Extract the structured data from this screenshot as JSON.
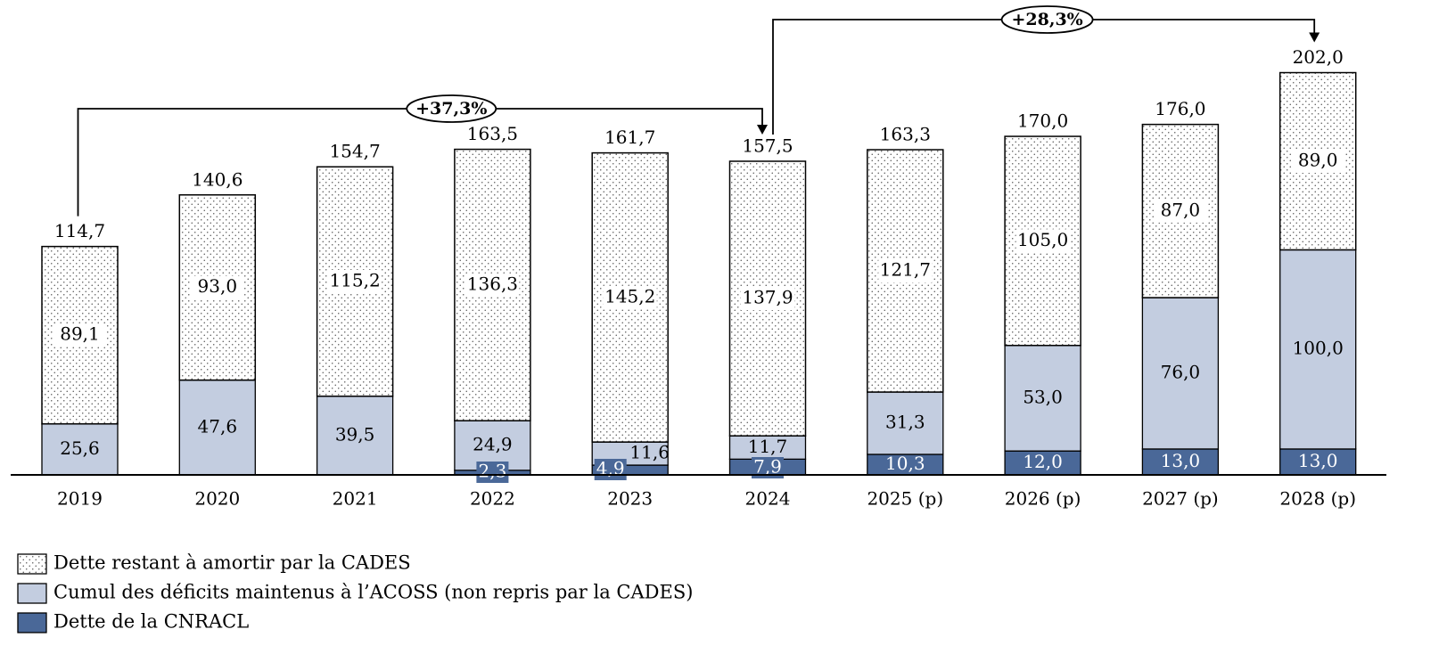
{
  "colors": {
    "cades_fill": "#ffffff",
    "cades_dots": "#555555",
    "acoss": "#c3cde0",
    "cnracl": "#4a6898",
    "stroke": "#000000"
  },
  "chart_data": {
    "type": "bar",
    "stacked": true,
    "categories": [
      "2019",
      "2020",
      "2021",
      "2022",
      "2023",
      "2024",
      "2025 (p)",
      "2026 (p)",
      "2027 (p)",
      "2028 (p)"
    ],
    "series": [
      {
        "name": "Dette de la CNRACL",
        "values": [
          0,
          0,
          0,
          2.3,
          4.9,
          7.9,
          10.3,
          12.0,
          13.0,
          13.0
        ]
      },
      {
        "name": "Cumul des déficits maintenus à l’ACOSS (non repris par la CADES)",
        "values": [
          25.6,
          47.6,
          39.5,
          24.9,
          11.6,
          11.7,
          31.3,
          53.0,
          76.0,
          100.0
        ]
      },
      {
        "name": "Dette restant à amortir par la CADES",
        "values": [
          89.1,
          93.0,
          115.2,
          136.3,
          145.2,
          137.9,
          121.7,
          105.0,
          87.0,
          89.0
        ]
      }
    ],
    "value_labels": {
      "cnracl": [
        "",
        "",
        "",
        "2,3",
        "4,9",
        "7,9",
        "10,3",
        "12,0",
        "13,0",
        "13,0"
      ],
      "acoss": [
        "25,6",
        "47,6",
        "39,5",
        "24,9",
        "11,6",
        "11,7",
        "31,3",
        "53,0",
        "76,0",
        "100,0"
      ],
      "cades": [
        "89,1",
        "93,0",
        "115,2",
        "136,3",
        "145,2",
        "137,9",
        "121,7",
        "105,0",
        "87,0",
        "89,0"
      ]
    },
    "totals": [
      114.7,
      140.6,
      154.7,
      163.5,
      161.7,
      157.5,
      163.3,
      170.0,
      176.0,
      202.0
    ],
    "total_labels": [
      "114,7",
      "140,6",
      "154,7",
      "163,5",
      "161,7",
      "157,5",
      "163,3",
      "170,0",
      "176,0",
      "202,0"
    ],
    "annotations": [
      {
        "text": "+37,3%",
        "from": "2019",
        "to": "2024"
      },
      {
        "text": "+28,3%",
        "from": "2024",
        "to": "2028 (p)"
      }
    ],
    "ylim": [
      0,
      210
    ],
    "grid": false,
    "legend_position": "bottom-left",
    "legend": [
      {
        "key": "cades",
        "label": "Dette restant à amortir par la CADES"
      },
      {
        "key": "acoss",
        "label": "Cumul des déficits maintenus à l’ACOSS (non repris par la CADES)"
      },
      {
        "key": "cnracl",
        "label": "Dette de la CNRACL"
      }
    ]
  }
}
